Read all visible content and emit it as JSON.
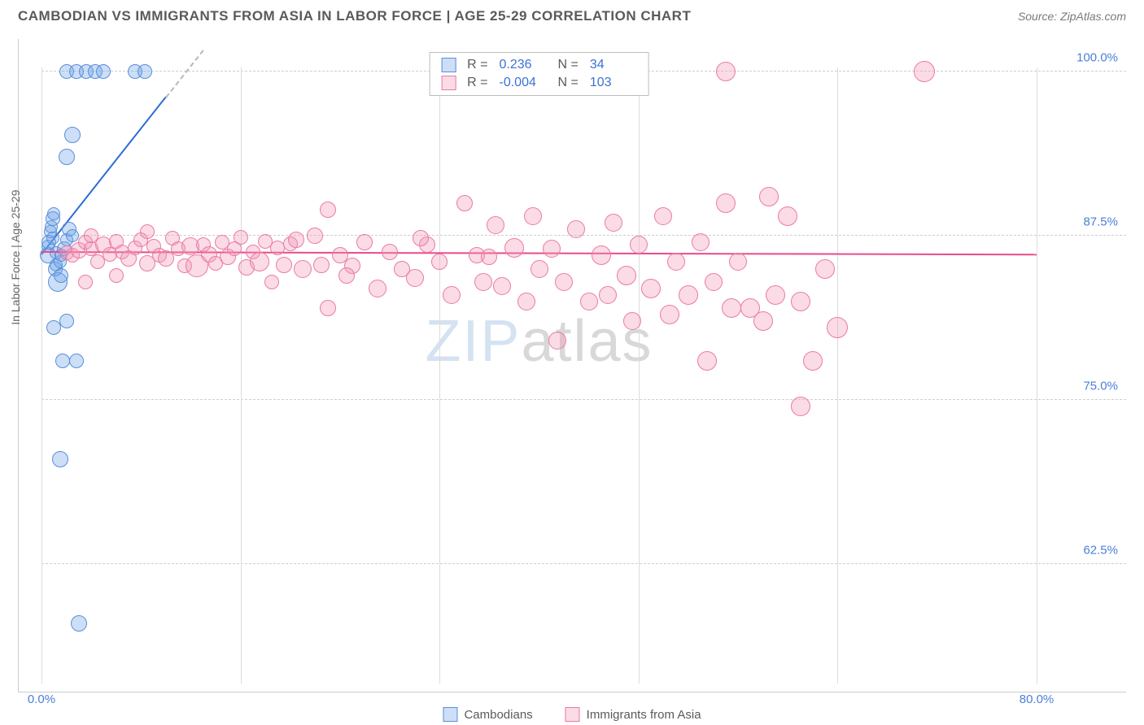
{
  "title": "CAMBODIAN VS IMMIGRANTS FROM ASIA IN LABOR FORCE | AGE 25-29 CORRELATION CHART",
  "source": "Source: ZipAtlas.com",
  "yaxis_title": "In Labor Force | Age 25-29",
  "watermark_a": "ZIP",
  "watermark_b": "atlas",
  "chart": {
    "type": "scatter",
    "background_color": "#ffffff",
    "grid_color": "#cfcfcf",
    "axis_color": "#cccccc",
    "label_color": "#4a7fd8",
    "title_color": "#5a5a5a",
    "xlim": [
      0,
      80
    ],
    "ylim": [
      55,
      102
    ],
    "xticks": [
      0,
      16,
      32,
      48,
      64,
      80
    ],
    "xtick_show_labels": [
      0,
      80
    ],
    "xtick_labels": {
      "0": "0.0%",
      "80": "80.0%"
    },
    "yticks": [
      62.5,
      75.0,
      87.5,
      100.0
    ],
    "ytick_labels": [
      "62.5%",
      "75.0%",
      "87.5%",
      "100.0%"
    ],
    "title_fontsize": 17,
    "label_fontsize": 15,
    "marker_opacity": 0.45
  },
  "series": [
    {
      "id": "cambodians",
      "label": "Cambodians",
      "color": "#6ea3e8",
      "fill": "rgba(110,163,232,0.35)",
      "border": "#5a8ed8",
      "R": "0.236",
      "N": "34",
      "trend": {
        "x1": 0,
        "y1": 86.0,
        "x2": 10,
        "y2": 98.0,
        "dash_to_x": 13,
        "color": "#2d6cd6"
      },
      "points": [
        {
          "x": 0.5,
          "y": 86.0,
          "r": 10
        },
        {
          "x": 0.5,
          "y": 86.7,
          "r": 8
        },
        {
          "x": 0.6,
          "y": 87.0,
          "r": 9
        },
        {
          "x": 0.7,
          "y": 87.8,
          "r": 8
        },
        {
          "x": 0.8,
          "y": 88.2,
          "r": 8
        },
        {
          "x": 0.9,
          "y": 88.8,
          "r": 9
        },
        {
          "x": 1.0,
          "y": 89.2,
          "r": 8
        },
        {
          "x": 1.1,
          "y": 85.0,
          "r": 9
        },
        {
          "x": 1.2,
          "y": 85.3,
          "r": 8
        },
        {
          "x": 1.3,
          "y": 84.0,
          "r": 12
        },
        {
          "x": 1.5,
          "y": 85.5,
          "r": 8
        },
        {
          "x": 1.6,
          "y": 84.5,
          "r": 9
        },
        {
          "x": 1.8,
          "y": 86.5,
          "r": 9
        },
        {
          "x": 2.0,
          "y": 87.2,
          "r": 8
        },
        {
          "x": 2.2,
          "y": 88.0,
          "r": 9
        },
        {
          "x": 2.5,
          "y": 87.5,
          "r": 8
        },
        {
          "x": 1.0,
          "y": 80.5,
          "r": 9
        },
        {
          "x": 2.0,
          "y": 81.0,
          "r": 9
        },
        {
          "x": 1.7,
          "y": 78.0,
          "r": 9
        },
        {
          "x": 2.8,
          "y": 78.0,
          "r": 9
        },
        {
          "x": 1.5,
          "y": 70.5,
          "r": 10
        },
        {
          "x": 2.5,
          "y": 95.2,
          "r": 10
        },
        {
          "x": 2.0,
          "y": 93.5,
          "r": 10
        },
        {
          "x": 2.0,
          "y": 100.0,
          "r": 9
        },
        {
          "x": 2.8,
          "y": 100.0,
          "r": 9
        },
        {
          "x": 3.6,
          "y": 100.0,
          "r": 9
        },
        {
          "x": 4.3,
          "y": 100.0,
          "r": 9
        },
        {
          "x": 5.0,
          "y": 100.0,
          "r": 9
        },
        {
          "x": 7.5,
          "y": 100.0,
          "r": 9
        },
        {
          "x": 8.3,
          "y": 100.0,
          "r": 9
        },
        {
          "x": 3.0,
          "y": 58.0,
          "r": 10
        },
        {
          "x": 1.2,
          "y": 86.2,
          "r": 8
        },
        {
          "x": 0.9,
          "y": 87.3,
          "r": 8
        },
        {
          "x": 1.6,
          "y": 86.0,
          "r": 8
        }
      ]
    },
    {
      "id": "immigrants",
      "label": "Immigrants from Asia",
      "color": "#f197b6",
      "fill": "rgba(241,151,182,0.35)",
      "border": "#eb7ba2",
      "R": "-0.004",
      "N": "103",
      "trend": {
        "x1": 0,
        "y1": 86.2,
        "x2": 80,
        "y2": 86.0,
        "color": "#e84b8a"
      },
      "points": [
        {
          "x": 2.0,
          "y": 86.2,
          "r": 9
        },
        {
          "x": 2.5,
          "y": 86.0,
          "r": 9
        },
        {
          "x": 3.0,
          "y": 86.4,
          "r": 10
        },
        {
          "x": 3.5,
          "y": 87.0,
          "r": 9
        },
        {
          "x": 4.0,
          "y": 86.5,
          "r": 9
        },
        {
          "x": 4.5,
          "y": 85.5,
          "r": 9
        },
        {
          "x": 5.0,
          "y": 86.8,
          "r": 10
        },
        {
          "x": 5.5,
          "y": 86.1,
          "r": 9
        },
        {
          "x": 6.0,
          "y": 87.1,
          "r": 9
        },
        {
          "x": 6.5,
          "y": 86.3,
          "r": 9
        },
        {
          "x": 7.0,
          "y": 85.8,
          "r": 10
        },
        {
          "x": 7.5,
          "y": 86.6,
          "r": 9
        },
        {
          "x": 8.0,
          "y": 87.2,
          "r": 9
        },
        {
          "x": 8.5,
          "y": 85.4,
          "r": 10
        },
        {
          "x": 9.0,
          "y": 86.7,
          "r": 9
        },
        {
          "x": 9.5,
          "y": 86.0,
          "r": 9
        },
        {
          "x": 10.0,
          "y": 85.8,
          "r": 10
        },
        {
          "x": 10.5,
          "y": 87.3,
          "r": 9
        },
        {
          "x": 11.0,
          "y": 86.5,
          "r": 9
        },
        {
          "x": 11.5,
          "y": 85.2,
          "r": 9
        },
        {
          "x": 12.0,
          "y": 86.7,
          "r": 11
        },
        {
          "x": 12.5,
          "y": 85.2,
          "r": 14
        },
        {
          "x": 13.0,
          "y": 86.8,
          "r": 9
        },
        {
          "x": 13.5,
          "y": 86.1,
          "r": 10
        },
        {
          "x": 14.0,
          "y": 85.4,
          "r": 9
        },
        {
          "x": 14.5,
          "y": 87.0,
          "r": 9
        },
        {
          "x": 15.0,
          "y": 85.9,
          "r": 10
        },
        {
          "x": 15.5,
          "y": 86.5,
          "r": 9
        },
        {
          "x": 16.0,
          "y": 87.4,
          "r": 9
        },
        {
          "x": 16.5,
          "y": 85.1,
          "r": 10
        },
        {
          "x": 17.0,
          "y": 86.3,
          "r": 9
        },
        {
          "x": 17.5,
          "y": 85.5,
          "r": 12
        },
        {
          "x": 18.0,
          "y": 87.1,
          "r": 9
        },
        {
          "x": 18.5,
          "y": 84.0,
          "r": 9
        },
        {
          "x": 19.0,
          "y": 86.6,
          "r": 9
        },
        {
          "x": 19.5,
          "y": 85.3,
          "r": 10
        },
        {
          "x": 20.0,
          "y": 86.9,
          "r": 9
        },
        {
          "x": 21.0,
          "y": 85.0,
          "r": 11
        },
        {
          "x": 22.0,
          "y": 87.5,
          "r": 10
        },
        {
          "x": 23.0,
          "y": 89.5,
          "r": 10
        },
        {
          "x": 23.0,
          "y": 82.0,
          "r": 10
        },
        {
          "x": 24.0,
          "y": 86.0,
          "r": 10
        },
        {
          "x": 25.0,
          "y": 85.2,
          "r": 10
        },
        {
          "x": 26.0,
          "y": 87.0,
          "r": 10
        },
        {
          "x": 27.0,
          "y": 83.5,
          "r": 11
        },
        {
          "x": 28.0,
          "y": 86.3,
          "r": 10
        },
        {
          "x": 29.0,
          "y": 85.0,
          "r": 10
        },
        {
          "x": 30.0,
          "y": 84.3,
          "r": 11
        },
        {
          "x": 31.0,
          "y": 86.8,
          "r": 10
        },
        {
          "x": 32.0,
          "y": 85.5,
          "r": 10
        },
        {
          "x": 33.0,
          "y": 83.0,
          "r": 11
        },
        {
          "x": 34.0,
          "y": 90.0,
          "r": 10
        },
        {
          "x": 35.0,
          "y": 86.0,
          "r": 10
        },
        {
          "x": 35.5,
          "y": 84.0,
          "r": 11
        },
        {
          "x": 36.0,
          "y": 85.9,
          "r": 10
        },
        {
          "x": 36.5,
          "y": 88.3,
          "r": 11
        },
        {
          "x": 37.0,
          "y": 83.7,
          "r": 11
        },
        {
          "x": 38.0,
          "y": 86.6,
          "r": 12
        },
        {
          "x": 39.0,
          "y": 82.5,
          "r": 11
        },
        {
          "x": 39.5,
          "y": 89.0,
          "r": 11
        },
        {
          "x": 40.0,
          "y": 85.0,
          "r": 11
        },
        {
          "x": 41.0,
          "y": 86.5,
          "r": 11
        },
        {
          "x": 41.5,
          "y": 79.5,
          "r": 11
        },
        {
          "x": 42.0,
          "y": 84.0,
          "r": 11
        },
        {
          "x": 43.0,
          "y": 88.0,
          "r": 11
        },
        {
          "x": 44.0,
          "y": 82.5,
          "r": 11
        },
        {
          "x": 45.0,
          "y": 86.0,
          "r": 12
        },
        {
          "x": 45.5,
          "y": 83.0,
          "r": 11
        },
        {
          "x": 46.0,
          "y": 88.5,
          "r": 11
        },
        {
          "x": 47.0,
          "y": 84.5,
          "r": 12
        },
        {
          "x": 47.5,
          "y": 81.0,
          "r": 11
        },
        {
          "x": 48.0,
          "y": 86.8,
          "r": 11
        },
        {
          "x": 49.0,
          "y": 83.5,
          "r": 12
        },
        {
          "x": 50.0,
          "y": 89.0,
          "r": 11
        },
        {
          "x": 50.5,
          "y": 81.5,
          "r": 12
        },
        {
          "x": 51.0,
          "y": 85.5,
          "r": 11
        },
        {
          "x": 52.0,
          "y": 83.0,
          "r": 12
        },
        {
          "x": 53.0,
          "y": 87.0,
          "r": 11
        },
        {
          "x": 53.5,
          "y": 78.0,
          "r": 12
        },
        {
          "x": 54.0,
          "y": 84.0,
          "r": 11
        },
        {
          "x": 55.0,
          "y": 90.0,
          "r": 12
        },
        {
          "x": 55.5,
          "y": 82.0,
          "r": 12
        },
        {
          "x": 56.0,
          "y": 85.5,
          "r": 11
        },
        {
          "x": 57.0,
          "y": 82.0,
          "r": 12
        },
        {
          "x": 58.0,
          "y": 81.0,
          "r": 12
        },
        {
          "x": 58.5,
          "y": 90.5,
          "r": 12
        },
        {
          "x": 59.0,
          "y": 83.0,
          "r": 12
        },
        {
          "x": 60.0,
          "y": 89.0,
          "r": 12
        },
        {
          "x": 61.0,
          "y": 82.5,
          "r": 12
        },
        {
          "x": 62.0,
          "y": 78.0,
          "r": 12
        },
        {
          "x": 63.0,
          "y": 85.0,
          "r": 12
        },
        {
          "x": 64.0,
          "y": 80.5,
          "r": 13
        },
        {
          "x": 61.0,
          "y": 74.5,
          "r": 12
        },
        {
          "x": 55.0,
          "y": 100.0,
          "r": 12
        },
        {
          "x": 71.0,
          "y": 100.0,
          "r": 13
        },
        {
          "x": 3.5,
          "y": 84.0,
          "r": 9
        },
        {
          "x": 4.0,
          "y": 87.5,
          "r": 9
        },
        {
          "x": 6.0,
          "y": 84.5,
          "r": 9
        },
        {
          "x": 8.5,
          "y": 87.8,
          "r": 9
        },
        {
          "x": 20.5,
          "y": 87.2,
          "r": 10
        },
        {
          "x": 22.5,
          "y": 85.3,
          "r": 10
        },
        {
          "x": 24.5,
          "y": 84.5,
          "r": 10
        },
        {
          "x": 30.5,
          "y": 87.3,
          "r": 10
        }
      ]
    }
  ],
  "stats_labels": {
    "R": "R =",
    "N": "N ="
  }
}
